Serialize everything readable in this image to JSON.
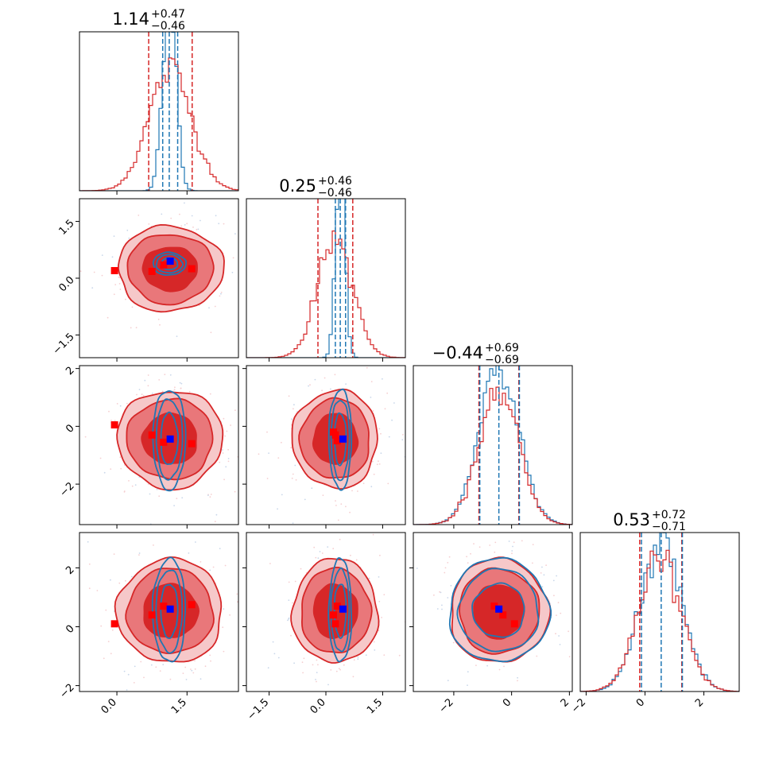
{
  "chart_data": {
    "type": "corner",
    "colors": {
      "red": "#d62728",
      "red_fill_inner": "#d62728",
      "red_fill_mid": "#e9777a",
      "red_fill_outer": "#f6c8c9",
      "blue": "#1f77b4",
      "truth_blue": "#0000ff",
      "truth_red": "#ff0000"
    },
    "parameters": [
      {
        "range": [
          -0.8,
          2.6
        ],
        "ticks": [
          0.0,
          1.5
        ],
        "tick_labels": [
          "0.0",
          "1.5"
        ]
      },
      {
        "range": [
          -2.1,
          2.1
        ],
        "ticks": [
          -1.5,
          0.0,
          1.5
        ],
        "tick_labels": [
          "−1.5",
          "0.0",
          "1.5"
        ]
      },
      {
        "range": [
          -3.4,
          2.1
        ],
        "ticks": [
          -2,
          0,
          2
        ],
        "tick_labels": [
          "−2",
          "0",
          "2"
        ]
      },
      {
        "range": [
          -2.2,
          3.2
        ],
        "ticks": [
          -2,
          0,
          2
        ],
        "tick_labels": [
          "−2",
          "0",
          "2"
        ]
      }
    ],
    "titles": [
      {
        "value": "1.14",
        "plus": "+0.47",
        "minus": "−0.46"
      },
      {
        "value": "0.25",
        "plus": "+0.46",
        "minus": "−0.46"
      },
      {
        "value": "−0.44",
        "plus": "+0.69",
        "minus": "−0.69"
      },
      {
        "value": "0.53",
        "plus": "+0.72",
        "minus": "−0.71"
      }
    ],
    "marginals": [
      {
        "red": {
          "mean": 1.14,
          "sd": 0.46
        },
        "blue": {
          "mean": 1.12,
          "sd": 0.14
        },
        "red_quantiles": [
          0.68,
          1.61
        ],
        "blue_quantiles": [
          0.98,
          1.3
        ]
      },
      {
        "red": {
          "mean": 0.25,
          "sd": 0.46
        },
        "blue": {
          "mean": 0.38,
          "sd": 0.12
        },
        "red_quantiles": [
          -0.21,
          0.71
        ],
        "blue_quantiles": [
          0.25,
          0.52
        ]
      },
      {
        "red": {
          "mean": -0.44,
          "sd": 0.69
        },
        "blue": {
          "mean": -0.44,
          "sd": 0.69
        },
        "red_quantiles": [
          -1.13,
          0.25
        ],
        "blue_quantiles": [
          -1.1,
          0.27
        ]
      },
      {
        "red": {
          "mean": 0.53,
          "sd": 0.72
        },
        "blue": {
          "mean": 0.55,
          "sd": 0.7
        },
        "red_quantiles": [
          -0.18,
          1.25
        ],
        "blue_quantiles": [
          -0.12,
          1.27
        ]
      }
    ],
    "blue_truth": [
      1.14,
      0.45,
      -0.44,
      0.6
    ],
    "red_points": [
      [
        -0.05,
        0.2,
        0.05,
        0.1
      ],
      [
        0.75,
        0.18,
        -0.3,
        0.4
      ],
      [
        1.0,
        0.35,
        -0.55,
        0.7
      ],
      [
        1.6,
        0.25,
        -0.6,
        0.75
      ]
    ],
    "red_point_pairs": {
      "2-1": [
        [
          0.2,
          -0.2
        ],
        [
          0.3,
          -0.5
        ],
        [
          0.25,
          -0.3
        ]
      ],
      "3-1": [
        [
          0.2,
          0.4
        ],
        [
          0.25,
          0.1
        ],
        [
          0.3,
          0.7
        ]
      ],
      "3-2": [
        [
          -0.6,
          0.7
        ],
        [
          -0.3,
          0.4
        ],
        [
          0.1,
          0.1
        ]
      ]
    }
  }
}
